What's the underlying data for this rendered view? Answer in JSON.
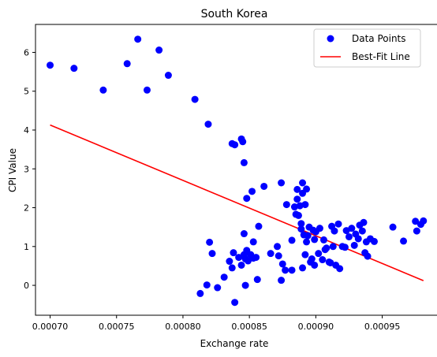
{
  "chart_data": {
    "type": "scatter",
    "title": "South Korea",
    "xlabel": "Exchange rate",
    "ylabel": "CPI Value",
    "xlim": [
      0.000689,
      0.000993
    ],
    "ylim": [
      -0.77,
      6.72
    ],
    "grid": false,
    "legend_position": "top-right",
    "xticks": [
      {
        "value": 0.0007,
        "label": "0.00070"
      },
      {
        "value": 0.00075,
        "label": "0.00075"
      },
      {
        "value": 0.0008,
        "label": "0.00080"
      },
      {
        "value": 0.00085,
        "label": "0.00085"
      },
      {
        "value": 0.0009,
        "label": "0.00090"
      },
      {
        "value": 0.00095,
        "label": "0.00095"
      }
    ],
    "yticks": [
      {
        "value": 0,
        "label": "0"
      },
      {
        "value": 1,
        "label": "1"
      },
      {
        "value": 2,
        "label": "2"
      },
      {
        "value": 3,
        "label": "3"
      },
      {
        "value": 4,
        "label": "4"
      },
      {
        "value": 5,
        "label": "5"
      },
      {
        "value": 6,
        "label": "6"
      }
    ],
    "series": [
      {
        "name": "Data Points",
        "kind": "scatter",
        "color": "#0000ff",
        "points": [
          [
            0.0007,
            5.67
          ],
          [
            0.000718,
            5.59
          ],
          [
            0.00074,
            5.03
          ],
          [
            0.000758,
            5.71
          ],
          [
            0.000766,
            6.34
          ],
          [
            0.000773,
            5.03
          ],
          [
            0.000782,
            6.06
          ],
          [
            0.000789,
            5.41
          ],
          [
            0.000809,
            4.79
          ],
          [
            0.000819,
            4.15
          ],
          [
            0.000837,
            3.65
          ],
          [
            0.000839,
            3.62
          ],
          [
            0.000844,
            3.77
          ],
          [
            0.000845,
            3.7
          ],
          [
            0.000846,
            3.16
          ],
          [
            0.000848,
            2.24
          ],
          [
            0.000852,
            2.42
          ],
          [
            0.000861,
            2.55
          ],
          [
            0.000874,
            2.64
          ],
          [
            0.000878,
            2.08
          ],
          [
            0.000857,
            1.52
          ],
          [
            0.000853,
            1.12
          ],
          [
            0.000846,
            1.33
          ],
          [
            0.00082,
            1.11
          ],
          [
            0.000822,
            0.82
          ],
          [
            0.000835,
            0.62
          ],
          [
            0.000837,
            0.45
          ],
          [
            0.000838,
            0.84
          ],
          [
            0.000842,
            0.72
          ],
          [
            0.000844,
            0.52
          ],
          [
            0.000846,
            0.79
          ],
          [
            0.000847,
            0.68
          ],
          [
            0.000848,
            0.9
          ],
          [
            0.000849,
            0.63
          ],
          [
            0.000851,
            0.79
          ],
          [
            0.000853,
            0.7
          ],
          [
            0.000855,
            0.72
          ],
          [
            0.000856,
            0.15
          ],
          [
            0.000847,
            0.0
          ],
          [
            0.000839,
            -0.44
          ],
          [
            0.000831,
            0.21
          ],
          [
            0.000826,
            -0.06
          ],
          [
            0.000818,
            0.01
          ],
          [
            0.000813,
            -0.21
          ],
          [
            0.000866,
            0.82
          ],
          [
            0.000871,
            1.0
          ],
          [
            0.000872,
            0.76
          ],
          [
            0.000875,
            0.55
          ],
          [
            0.000877,
            0.39
          ],
          [
            0.000874,
            0.13
          ],
          [
            0.000882,
            1.16
          ],
          [
            0.000882,
            0.39
          ],
          [
            0.000884,
            2.02
          ],
          [
            0.000885,
            1.83
          ],
          [
            0.000886,
            2.22
          ],
          [
            0.000887,
            1.8
          ],
          [
            0.000886,
            2.47
          ],
          [
            0.000888,
            2.05
          ],
          [
            0.000889,
            1.59
          ],
          [
            0.000889,
            1.45
          ],
          [
            0.00089,
            2.64
          ],
          [
            0.00089,
            2.37
          ],
          [
            0.000891,
            1.3
          ],
          [
            0.000892,
            2.08
          ],
          [
            0.000893,
            2.48
          ],
          [
            0.000892,
            0.79
          ],
          [
            0.000893,
            1.12
          ],
          [
            0.00089,
            0.45
          ],
          [
            0.000894,
            1.28
          ],
          [
            0.000895,
            1.5
          ],
          [
            0.000896,
            0.6
          ],
          [
            0.000897,
            0.68
          ],
          [
            0.000898,
            1.42
          ],
          [
            0.000899,
            1.18
          ],
          [
            0.000899,
            0.52
          ],
          [
            0.0009,
            1.38
          ],
          [
            0.000902,
            0.82
          ],
          [
            0.000903,
            1.47
          ],
          [
            0.000905,
            0.66
          ],
          [
            0.000906,
            1.17
          ],
          [
            0.000907,
            0.92
          ],
          [
            0.000908,
            0.96
          ],
          [
            0.00091,
            0.6
          ],
          [
            0.000911,
            0.58
          ],
          [
            0.000912,
            1.52
          ],
          [
            0.000913,
            1.0
          ],
          [
            0.000914,
            1.4
          ],
          [
            0.000915,
            0.52
          ],
          [
            0.000917,
            1.58
          ],
          [
            0.000918,
            0.43
          ],
          [
            0.00092,
            1.0
          ],
          [
            0.000922,
            0.98
          ],
          [
            0.000923,
            1.41
          ],
          [
            0.000925,
            1.25
          ],
          [
            0.000927,
            1.47
          ],
          [
            0.000929,
            1.03
          ],
          [
            0.00093,
            1.32
          ],
          [
            0.000932,
            1.2
          ],
          [
            0.000933,
            1.55
          ],
          [
            0.000935,
            1.4
          ],
          [
            0.000936,
            1.62
          ],
          [
            0.000937,
            0.84
          ],
          [
            0.000938,
            1.12
          ],
          [
            0.000939,
            0.75
          ],
          [
            0.000941,
            1.2
          ],
          [
            0.000944,
            1.13
          ],
          [
            0.000958,
            1.5
          ],
          [
            0.000966,
            1.14
          ],
          [
            0.000975,
            1.65
          ],
          [
            0.000976,
            1.4
          ],
          [
            0.000979,
            1.57
          ],
          [
            0.000981,
            1.66
          ]
        ]
      },
      {
        "name": "Best-Fit Line",
        "kind": "line",
        "color": "#ff0000",
        "points": [
          [
            0.0007,
            4.13
          ],
          [
            0.000981,
            0.12
          ]
        ]
      }
    ]
  }
}
